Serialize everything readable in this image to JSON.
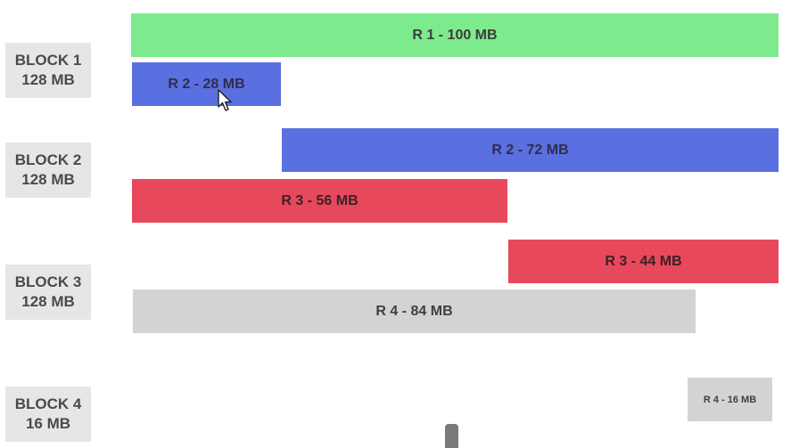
{
  "blocks": [
    {
      "name": "BLOCK 1",
      "size": "128 MB"
    },
    {
      "name": "BLOCK 2",
      "size": "128 MB"
    },
    {
      "name": "BLOCK 3",
      "size": "128 MB"
    },
    {
      "name": "BLOCK 4",
      "size": "16 MB"
    }
  ],
  "records": [
    {
      "label": "R 1 - 100 MB",
      "color": "#7eea8e"
    },
    {
      "label": "R 2 - 28 MB",
      "color": "#5a6fe0"
    },
    {
      "label": "R 2 - 72 MB",
      "color": "#5a6fe0"
    },
    {
      "label": "R 3 - 56 MB",
      "color": "#e8485c"
    },
    {
      "label": "R 3 - 44 MB",
      "color": "#e8485c"
    },
    {
      "label": "R 4 - 84 MB",
      "color": "#d3d3d1"
    },
    {
      "label": "R 4 - 16 MB",
      "color": "#d3d3d1"
    }
  ],
  "icons": {
    "cursor": "mouse-pointer-icon"
  }
}
